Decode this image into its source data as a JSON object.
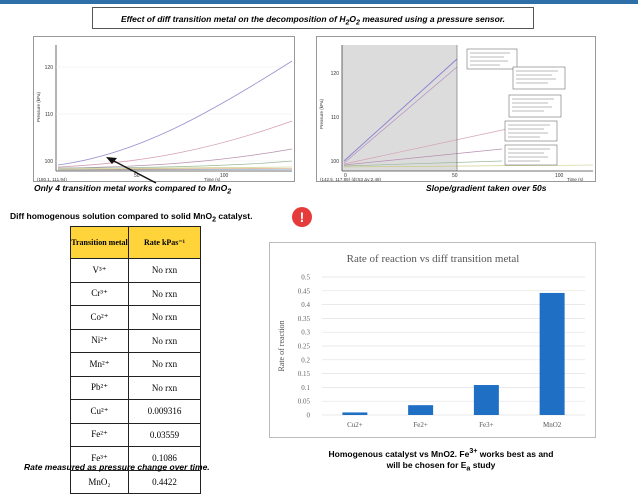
{
  "header": {
    "title_a": "Effect of diff transition metal on the decomposition of H",
    "title_sub1": "2",
    "title_b": "O",
    "title_sub2": "2",
    "title_c": " measured using a pressure sensor."
  },
  "left_graph": {
    "y_label": "Pressure (kPa)",
    "x_label": "Time (s)",
    "y_ticks": [
      "120",
      "110",
      "100"
    ],
    "x_ticks": [
      "50",
      "100"
    ],
    "coord_readout": "(180.1, 111.94)",
    "caption_a": "Only 4 transition metal works compared to MnO",
    "caption_sub": "2"
  },
  "right_graph": {
    "y_label": "Pressure (kPa)",
    "x_label": "Time (s)",
    "y_ticks": [
      "120",
      "110",
      "100"
    ],
    "x_ticks": [
      "0",
      "50",
      "100"
    ],
    "coord_readout": "(142.5, 117.85) (dt:53 Δv:2.48)",
    "caption": "Slope/gradient taken over 50s"
  },
  "note": {
    "text_a": "Diff homogenous solution compared to solid MnO",
    "text_sub": "2",
    "text_b": " catalyst.",
    "alert_glyph": "!"
  },
  "table": {
    "header_metal": "Transition metal",
    "header_rate": "Rate kPas⁻¹",
    "rows": [
      {
        "metal": "V³⁺",
        "rate": "No rxn"
      },
      {
        "metal": "Cr³⁺",
        "rate": "No rxn"
      },
      {
        "metal": "Co²⁺",
        "rate": "No rxn"
      },
      {
        "metal": "Ni²⁺",
        "rate": "No rxn"
      },
      {
        "metal": "Mn²⁺",
        "rate": "No rxn"
      },
      {
        "metal": "Pb²⁺",
        "rate": "No rxn"
      },
      {
        "metal": "Cu²⁺",
        "rate": "0.009316"
      },
      {
        "metal": "Fe²⁺",
        "rate": "0.03559"
      },
      {
        "metal": "Fe³⁺",
        "rate": "0.1086"
      },
      {
        "metal": "MnO₂",
        "rate": "0.4422"
      }
    ],
    "caption": "Rate measured as pressure change over time."
  },
  "chart_data": {
    "type": "bar",
    "title": "Rate of reaction vs diff transition metal",
    "xlabel": "",
    "ylabel": "Rate of reaction",
    "categories": [
      "Cu2+",
      "Fe2+",
      "Fe3+",
      "MnO2"
    ],
    "values": [
      0.009316,
      0.03559,
      0.1086,
      0.4422
    ],
    "ylim": [
      0,
      0.5
    ],
    "yticks": [
      "0",
      "0.05",
      "0.1",
      "0.15",
      "0.2",
      "0.25",
      "0.3",
      "0.35",
      "0.4",
      "0.45",
      "0.5"
    ],
    "grid": true,
    "bar_color": "#1f6fc5"
  },
  "bottom_note": {
    "line1_a": "Homogenous catalyst vs MnO2. Fe",
    "line1_sup": "3+",
    "line1_b": " works best as and",
    "line2_a": "will be chosen for E",
    "line2_sub": "a",
    "line2_b": " study"
  }
}
